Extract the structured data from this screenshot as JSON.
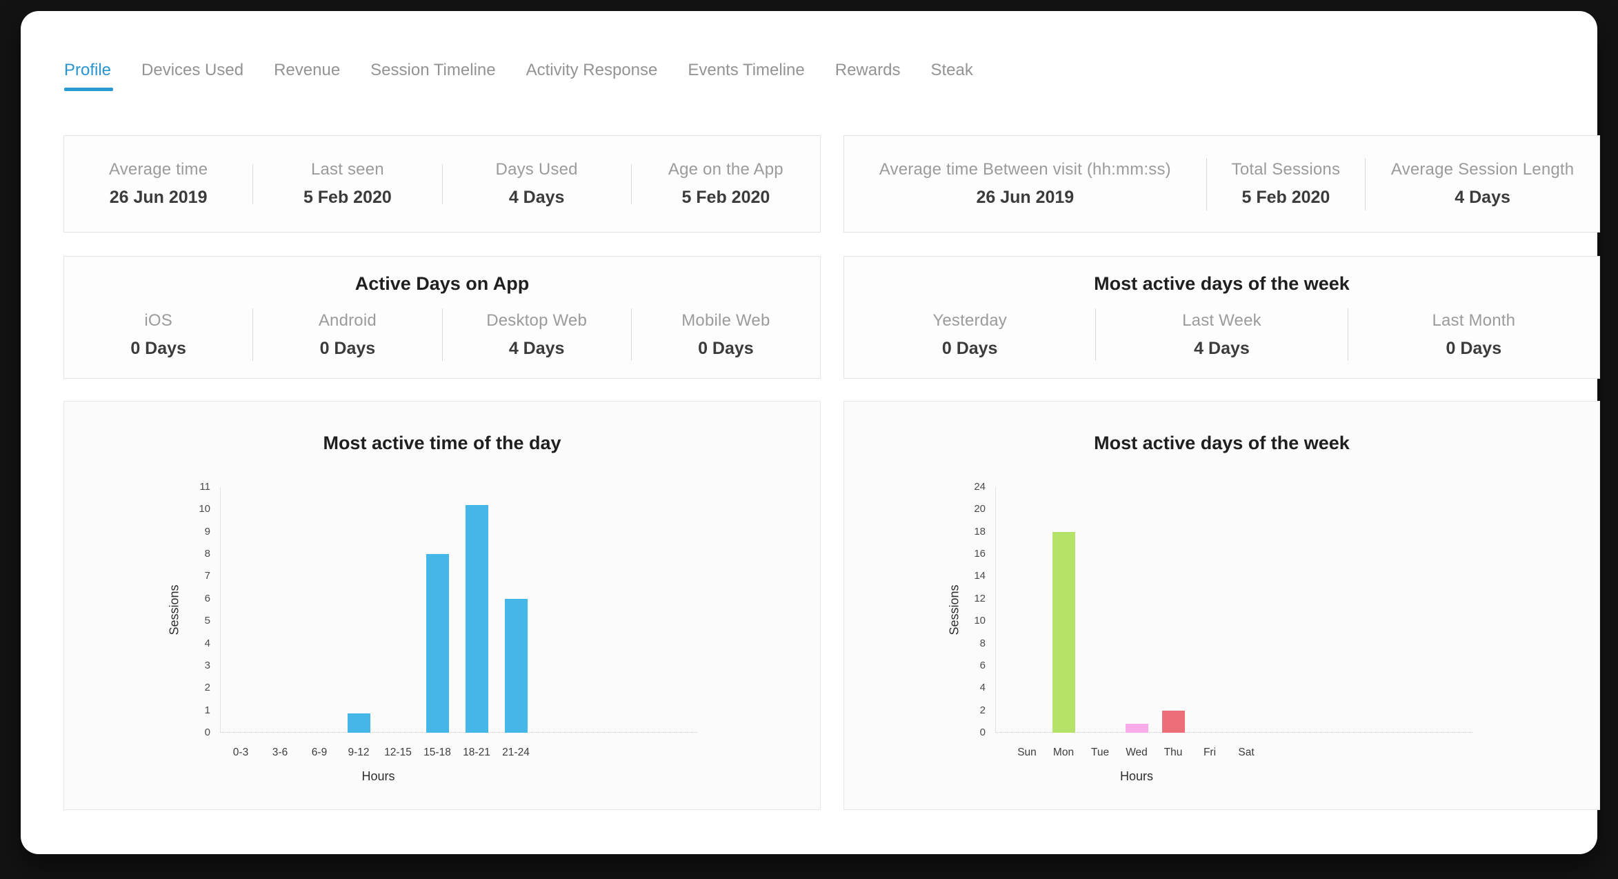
{
  "tabs": [
    {
      "label": "Profile",
      "active": true
    },
    {
      "label": "Devices Used"
    },
    {
      "label": "Revenue"
    },
    {
      "label": "Session Timeline"
    },
    {
      "label": "Activity Response"
    },
    {
      "label": "Events Timeline"
    },
    {
      "label": "Rewards"
    },
    {
      "label": "Steak"
    }
  ],
  "cards": {
    "usage_summary": {
      "items": [
        {
          "label": "Average time",
          "value": "26 Jun 2019"
        },
        {
          "label": "Last seen",
          "value": "5 Feb 2020"
        },
        {
          "label": "Days Used",
          "value": "4 Days"
        },
        {
          "label": "Age on the App",
          "value": "5 Feb 2020"
        }
      ]
    },
    "session_summary": {
      "items": [
        {
          "label": "Average time Between visit (hh:mm:ss)",
          "value": "26 Jun 2019"
        },
        {
          "label": "Total Sessions",
          "value": "5 Feb 2020"
        },
        {
          "label": "Average Session Length",
          "value": "4 Days"
        }
      ]
    },
    "active_days": {
      "title": "Active Days on App",
      "items": [
        {
          "label": "iOS",
          "value": "0 Days"
        },
        {
          "label": "Android",
          "value": "0 Days"
        },
        {
          "label": "Desktop Web",
          "value": "4 Days"
        },
        {
          "label": "Mobile Web",
          "value": "0 Days"
        }
      ]
    },
    "most_active_days": {
      "title": "Most active days of the week",
      "items": [
        {
          "label": "Yesterday",
          "value": "0 Days"
        },
        {
          "label": "Last Week",
          "value": "4 Days"
        },
        {
          "label": "Last Month",
          "value": "0 Days"
        }
      ]
    }
  },
  "chart_data": [
    {
      "type": "bar",
      "title": "Most active time of the day",
      "categories": [
        "0-3",
        "3-6",
        "6-9",
        "9-12",
        "12-15",
        "15-18",
        "18-21",
        "21-24"
      ],
      "values": [
        0,
        0,
        0,
        0.85,
        0,
        8,
        10.2,
        6
      ],
      "colors": [
        "#45b6e8",
        "#45b6e8",
        "#45b6e8",
        "#45b6e8",
        "#45b6e8",
        "#45b6e8",
        "#45b6e8",
        "#45b6e8"
      ],
      "xlabel": "Hours",
      "ylabel": "Sessions",
      "y_ticks": [
        "0",
        "1",
        "2",
        "3",
        "4",
        "5",
        "6",
        "7",
        "8",
        "9",
        "10",
        "11"
      ],
      "ylim": [
        0,
        11
      ],
      "grid": false,
      "legend": "none"
    },
    {
      "type": "bar",
      "title": "Most active days of the week",
      "categories": [
        "Sun",
        "Mon",
        "Tue",
        "Wed",
        "Thu",
        "Fri",
        "Sat"
      ],
      "values": [
        0,
        18,
        0,
        0.8,
        2,
        0,
        0
      ],
      "colors": [
        "#cccccc",
        "#b5e36a",
        "#cccccc",
        "#f9ace9",
        "#ed6e79",
        "#cccccc",
        "#cccccc"
      ],
      "xlabel": "Hours",
      "ylabel": "Sessions",
      "y_ticks": [
        "0",
        "2",
        "4",
        "6",
        "8",
        "10",
        "12",
        "14",
        "16",
        "18",
        "20",
        "24"
      ],
      "ylim": [
        0,
        24
      ],
      "grid": false,
      "legend": "none"
    }
  ]
}
